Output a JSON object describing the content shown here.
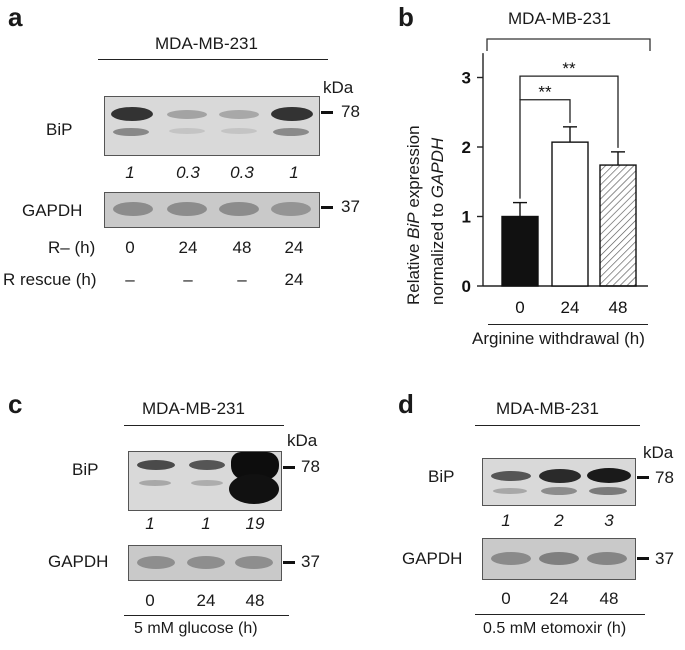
{
  "panel_a": {
    "label": "a",
    "cell_line": "MDA-MB-231",
    "kda": "kDa",
    "rows": {
      "bip": "BiP",
      "gapdh": "GAPDH",
      "r_minus": "R– (h)",
      "r_rescue": "R rescue (h)"
    },
    "mw_bip": "78",
    "mw_gapdh": "37",
    "quant": [
      "1",
      "0.3",
      "0.3",
      "1"
    ],
    "r_minus_values": [
      "0",
      "24",
      "48",
      "24"
    ],
    "r_rescue_values": [
      "–",
      "–",
      "–",
      "24"
    ]
  },
  "panel_b": {
    "label": "b",
    "cell_line": "MDA-MB-231",
    "ylabel_line1_pre": "Relative ",
    "ylabel_line1_it": "BiP",
    "ylabel_line1_post": " expression",
    "ylabel_line2_pre": "normalized to ",
    "ylabel_line2_it": "GAPDH",
    "xlabel": "Arginine withdrawal (h)",
    "sig1": "**",
    "sig2": "**"
  },
  "chart_data": {
    "type": "bar",
    "categories": [
      "0",
      "24",
      "48"
    ],
    "values": [
      1.0,
      2.07,
      1.74
    ],
    "errors": [
      0.2,
      0.22,
      0.19
    ],
    "fills": [
      "#111111",
      "#ffffff",
      "hatched"
    ],
    "yticks": [
      "0",
      "1",
      "2",
      "3"
    ],
    "ylim": [
      0,
      3.35
    ],
    "grid": false
  },
  "panel_c": {
    "label": "c",
    "cell_line": "MDA-MB-231",
    "kda": "kDa",
    "bip": "BiP",
    "gapdh": "GAPDH",
    "mw_bip": "78",
    "mw_gapdh": "37",
    "quant": [
      "1",
      "1",
      "19"
    ],
    "times": [
      "0",
      "24",
      "48"
    ],
    "condition": "5 mM glucose (h)"
  },
  "panel_d": {
    "label": "d",
    "cell_line": "MDA-MB-231",
    "kda": "kDa",
    "bip": "BiP",
    "gapdh": "GAPDH",
    "mw_bip": "78",
    "mw_gapdh": "37",
    "quant": [
      "1",
      "2",
      "3"
    ],
    "times": [
      "0",
      "24",
      "48"
    ],
    "condition": "0.5 mM etomoxir (h)"
  }
}
